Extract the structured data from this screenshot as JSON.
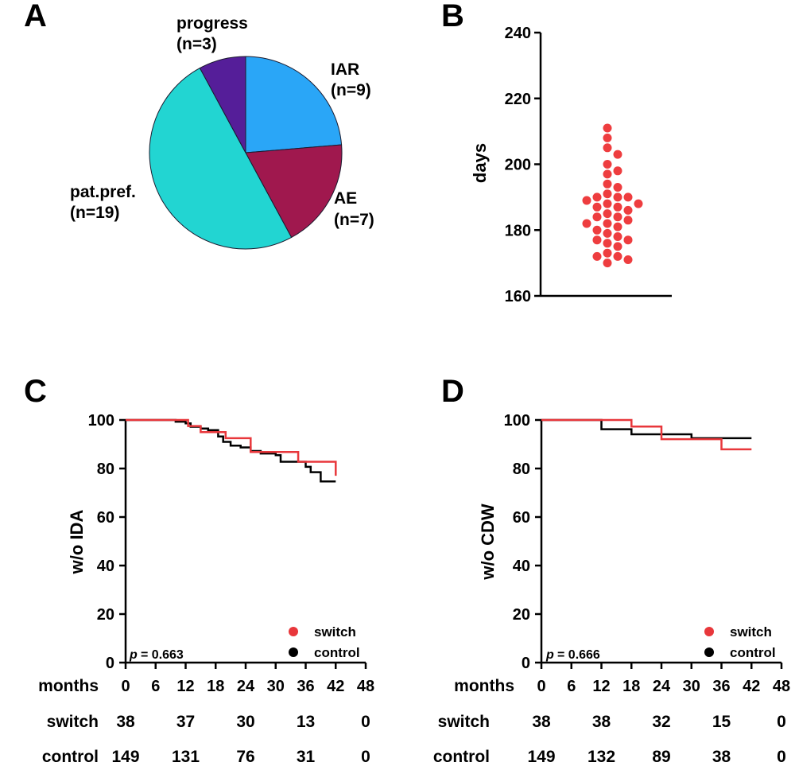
{
  "colors": {
    "switch": "#e8373b",
    "control": "#000000",
    "pie": [
      "#2aa6f7",
      "#a0184e",
      "#22d5d2",
      "#551e99"
    ],
    "dot": "#ee3d3f"
  },
  "panels": {
    "a": {
      "letter": "A"
    },
    "b": {
      "letter": "B"
    },
    "c": {
      "letter": "C"
    },
    "d": {
      "letter": "D"
    }
  },
  "chart_data": [
    {
      "id": "A",
      "type": "pie",
      "slices": [
        {
          "label": "IAR",
          "count_label": "(n=9)",
          "value": 9
        },
        {
          "label": "AE",
          "count_label": "(n=7)",
          "value": 7
        },
        {
          "label": "pat.pref.",
          "count_label": "(n=19)",
          "value": 19
        },
        {
          "label": "progress",
          "count_label": "(n=3)",
          "value": 3
        }
      ]
    },
    {
      "id": "B",
      "type": "scatter",
      "ylabel": "days",
      "ylim": [
        160,
        240
      ],
      "yticks": [
        160,
        180,
        200,
        220,
        240
      ],
      "values": [
        211,
        208,
        205,
        203,
        200,
        198,
        197,
        194,
        193,
        191,
        190,
        190,
        190,
        189,
        188,
        188,
        187,
        187,
        186,
        185,
        184,
        184,
        183,
        182,
        182,
        181,
        180,
        179,
        178,
        177,
        177,
        176,
        175,
        173,
        172,
        172,
        171,
        170
      ]
    },
    {
      "id": "C",
      "type": "line",
      "ylabel": "w/o IDA",
      "xlabel": "months",
      "xlim": [
        0,
        48
      ],
      "ylim": [
        0,
        100
      ],
      "xticks": [
        0,
        6,
        12,
        18,
        24,
        30,
        36,
        42,
        48
      ],
      "yticks": [
        0,
        20,
        40,
        60,
        80,
        100
      ],
      "p_label": "p",
      "p_value": "= 0.663",
      "legend": [
        "switch",
        "control"
      ],
      "series": [
        {
          "name": "switch",
          "steps": [
            [
              0,
              100
            ],
            [
              12.5,
              97.5
            ],
            [
              15,
              95
            ],
            [
              20,
              92.5
            ],
            [
              25,
              86.8
            ],
            [
              34.5,
              82.8
            ],
            [
              42,
              77
            ]
          ]
        },
        {
          "name": "control",
          "steps": [
            [
              0,
              100
            ],
            [
              10,
              99.3
            ],
            [
              12,
              98.6
            ],
            [
              13,
              97.2
            ],
            [
              15,
              96.5
            ],
            [
              16.5,
              95.8
            ],
            [
              18.5,
              93.2
            ],
            [
              19.5,
              91
            ],
            [
              21,
              89.4
            ],
            [
              23,
              88.7
            ],
            [
              25,
              87.2
            ],
            [
              27,
              86.2
            ],
            [
              30,
              85.5
            ],
            [
              31,
              82.8
            ],
            [
              36,
              80.7
            ],
            [
              37,
              78.5
            ],
            [
              39,
              74.7
            ],
            [
              42,
              74.7
            ]
          ]
        }
      ],
      "at_risk": {
        "months_label": "months",
        "rows": [
          {
            "label": "switch",
            "values": [
              "38",
              "37",
              "30",
              "13",
              "0"
            ]
          },
          {
            "label": "control",
            "values": [
              "149",
              "131",
              "76",
              "31",
              "0"
            ]
          }
        ],
        "at_months": [
          0,
          12,
          24,
          36,
          48
        ]
      }
    },
    {
      "id": "D",
      "type": "line",
      "ylabel": "w/o CDW",
      "xlabel": "months",
      "xlim": [
        0,
        48
      ],
      "ylim": [
        0,
        100
      ],
      "xticks": [
        0,
        6,
        12,
        18,
        24,
        30,
        36,
        42,
        48
      ],
      "yticks": [
        0,
        20,
        40,
        60,
        80,
        100
      ],
      "p_label": "p",
      "p_value": "= 0.666",
      "legend": [
        "switch",
        "control"
      ],
      "series": [
        {
          "name": "switch",
          "steps": [
            [
              0,
              100
            ],
            [
              18,
              97.3
            ],
            [
              24,
              92.1
            ],
            [
              36,
              87.9
            ],
            [
              42,
              87.9
            ]
          ]
        },
        {
          "name": "control",
          "steps": [
            [
              0,
              100
            ],
            [
              12,
              96.2
            ],
            [
              18,
              94.1
            ],
            [
              30,
              92.5
            ],
            [
              42,
              92.5
            ]
          ]
        }
      ],
      "at_risk": {
        "months_label": "months",
        "rows": [
          {
            "label": "switch",
            "values": [
              "38",
              "38",
              "32",
              "15",
              "0"
            ]
          },
          {
            "label": "control",
            "values": [
              "149",
              "132",
              "89",
              "38",
              "0"
            ]
          }
        ],
        "at_months": [
          0,
          12,
          24,
          36,
          48
        ]
      }
    }
  ]
}
